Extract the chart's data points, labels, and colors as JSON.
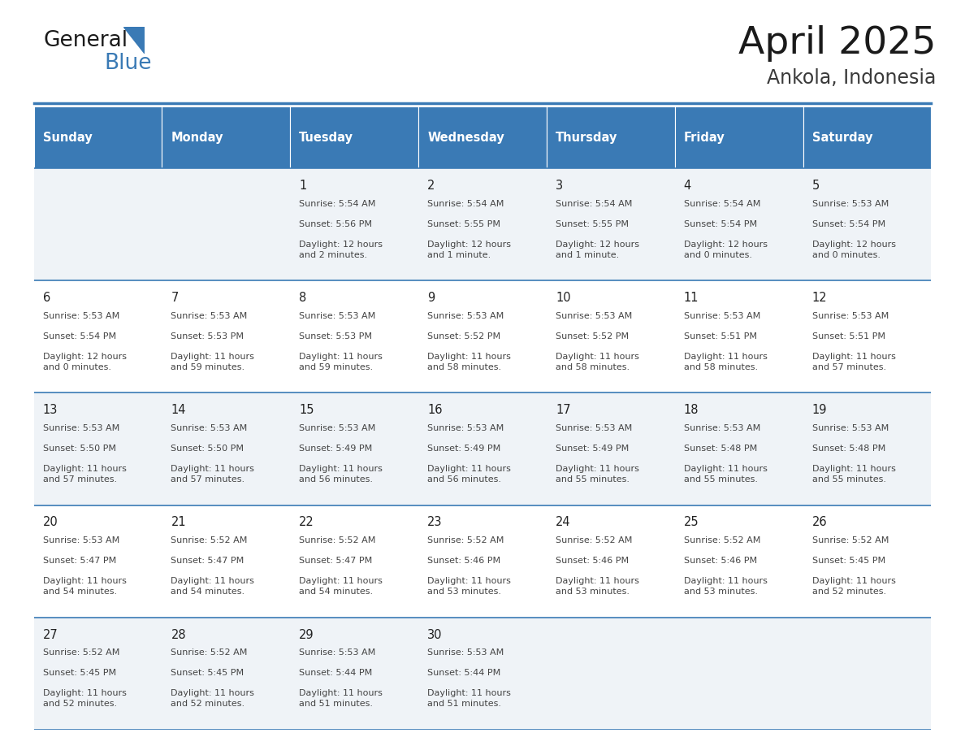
{
  "title": "April 2025",
  "subtitle": "Ankola, Indonesia",
  "header_bg_color": "#3a7ab5",
  "header_text_color": "#ffffff",
  "cell_bg_even": "#eff3f7",
  "cell_bg_odd": "#ffffff",
  "row_line_color": "#3a7ab5",
  "text_color": "#333333",
  "days_of_week": [
    "Sunday",
    "Monday",
    "Tuesday",
    "Wednesday",
    "Thursday",
    "Friday",
    "Saturday"
  ],
  "calendar_data": [
    [
      {
        "day": "",
        "sunrise": "",
        "sunset": "",
        "daylight": ""
      },
      {
        "day": "",
        "sunrise": "",
        "sunset": "",
        "daylight": ""
      },
      {
        "day": "1",
        "sunrise": "5:54 AM",
        "sunset": "5:56 PM",
        "daylight": "12 hours\nand 2 minutes."
      },
      {
        "day": "2",
        "sunrise": "5:54 AM",
        "sunset": "5:55 PM",
        "daylight": "12 hours\nand 1 minute."
      },
      {
        "day": "3",
        "sunrise": "5:54 AM",
        "sunset": "5:55 PM",
        "daylight": "12 hours\nand 1 minute."
      },
      {
        "day": "4",
        "sunrise": "5:54 AM",
        "sunset": "5:54 PM",
        "daylight": "12 hours\nand 0 minutes."
      },
      {
        "day": "5",
        "sunrise": "5:53 AM",
        "sunset": "5:54 PM",
        "daylight": "12 hours\nand 0 minutes."
      }
    ],
    [
      {
        "day": "6",
        "sunrise": "5:53 AM",
        "sunset": "5:54 PM",
        "daylight": "12 hours\nand 0 minutes."
      },
      {
        "day": "7",
        "sunrise": "5:53 AM",
        "sunset": "5:53 PM",
        "daylight": "11 hours\nand 59 minutes."
      },
      {
        "day": "8",
        "sunrise": "5:53 AM",
        "sunset": "5:53 PM",
        "daylight": "11 hours\nand 59 minutes."
      },
      {
        "day": "9",
        "sunrise": "5:53 AM",
        "sunset": "5:52 PM",
        "daylight": "11 hours\nand 58 minutes."
      },
      {
        "day": "10",
        "sunrise": "5:53 AM",
        "sunset": "5:52 PM",
        "daylight": "11 hours\nand 58 minutes."
      },
      {
        "day": "11",
        "sunrise": "5:53 AM",
        "sunset": "5:51 PM",
        "daylight": "11 hours\nand 58 minutes."
      },
      {
        "day": "12",
        "sunrise": "5:53 AM",
        "sunset": "5:51 PM",
        "daylight": "11 hours\nand 57 minutes."
      }
    ],
    [
      {
        "day": "13",
        "sunrise": "5:53 AM",
        "sunset": "5:50 PM",
        "daylight": "11 hours\nand 57 minutes."
      },
      {
        "day": "14",
        "sunrise": "5:53 AM",
        "sunset": "5:50 PM",
        "daylight": "11 hours\nand 57 minutes."
      },
      {
        "day": "15",
        "sunrise": "5:53 AM",
        "sunset": "5:49 PM",
        "daylight": "11 hours\nand 56 minutes."
      },
      {
        "day": "16",
        "sunrise": "5:53 AM",
        "sunset": "5:49 PM",
        "daylight": "11 hours\nand 56 minutes."
      },
      {
        "day": "17",
        "sunrise": "5:53 AM",
        "sunset": "5:49 PM",
        "daylight": "11 hours\nand 55 minutes."
      },
      {
        "day": "18",
        "sunrise": "5:53 AM",
        "sunset": "5:48 PM",
        "daylight": "11 hours\nand 55 minutes."
      },
      {
        "day": "19",
        "sunrise": "5:53 AM",
        "sunset": "5:48 PM",
        "daylight": "11 hours\nand 55 minutes."
      }
    ],
    [
      {
        "day": "20",
        "sunrise": "5:53 AM",
        "sunset": "5:47 PM",
        "daylight": "11 hours\nand 54 minutes."
      },
      {
        "day": "21",
        "sunrise": "5:52 AM",
        "sunset": "5:47 PM",
        "daylight": "11 hours\nand 54 minutes."
      },
      {
        "day": "22",
        "sunrise": "5:52 AM",
        "sunset": "5:47 PM",
        "daylight": "11 hours\nand 54 minutes."
      },
      {
        "day": "23",
        "sunrise": "5:52 AM",
        "sunset": "5:46 PM",
        "daylight": "11 hours\nand 53 minutes."
      },
      {
        "day": "24",
        "sunrise": "5:52 AM",
        "sunset": "5:46 PM",
        "daylight": "11 hours\nand 53 minutes."
      },
      {
        "day": "25",
        "sunrise": "5:52 AM",
        "sunset": "5:46 PM",
        "daylight": "11 hours\nand 53 minutes."
      },
      {
        "day": "26",
        "sunrise": "5:52 AM",
        "sunset": "5:45 PM",
        "daylight": "11 hours\nand 52 minutes."
      }
    ],
    [
      {
        "day": "27",
        "sunrise": "5:52 AM",
        "sunset": "5:45 PM",
        "daylight": "11 hours\nand 52 minutes."
      },
      {
        "day": "28",
        "sunrise": "5:52 AM",
        "sunset": "5:45 PM",
        "daylight": "11 hours\nand 52 minutes."
      },
      {
        "day": "29",
        "sunrise": "5:53 AM",
        "sunset": "5:44 PM",
        "daylight": "11 hours\nand 51 minutes."
      },
      {
        "day": "30",
        "sunrise": "5:53 AM",
        "sunset": "5:44 PM",
        "daylight": "11 hours\nand 51 minutes."
      },
      {
        "day": "",
        "sunrise": "",
        "sunset": "",
        "daylight": ""
      },
      {
        "day": "",
        "sunrise": "",
        "sunset": "",
        "daylight": ""
      },
      {
        "day": "",
        "sunrise": "",
        "sunset": "",
        "daylight": ""
      }
    ]
  ]
}
